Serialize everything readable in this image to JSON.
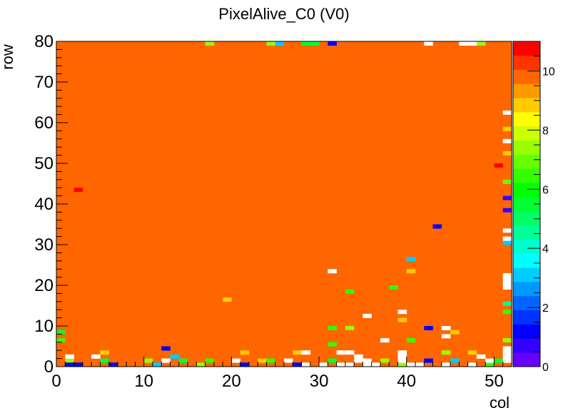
{
  "chart_data": {
    "type": "heatmap",
    "title": "PixelAlive_C0 (V0)",
    "xlabel": "col",
    "ylabel": "row",
    "x_range": [
      0,
      52
    ],
    "y_range": [
      0,
      80
    ],
    "n_cols": 52,
    "n_rows": 80,
    "z_range": [
      0,
      11
    ],
    "x_ticks": [
      0,
      10,
      20,
      30,
      40,
      50
    ],
    "y_ticks": [
      0,
      10,
      20,
      30,
      40,
      50,
      60,
      70,
      80
    ],
    "z_ticks": [
      0,
      2,
      4,
      6,
      8,
      10
    ],
    "dominant_value": 10,
    "palette": [
      "#6600ff",
      "#3300ff",
      "#0000ff",
      "#0033ff",
      "#0066ff",
      "#0099ff",
      "#00ccff",
      "#00ffff",
      "#00ffcc",
      "#00ff99",
      "#00ff66",
      "#00ff33",
      "#00ff00",
      "#33ff00",
      "#66ff00",
      "#99ff00",
      "#ccff00",
      "#ffff00",
      "#ffcc00",
      "#ff9900",
      "#ff6600",
      "#ff3300",
      "#ff0000"
    ],
    "cells": [
      {
        "col": 3,
        "row": 74,
        "v": 9.6
      },
      {
        "col": 7,
        "row": 73,
        "v": 9.6
      },
      {
        "col": 12,
        "row": 72,
        "v": 9.6
      },
      {
        "col": 15,
        "row": 75,
        "v": 9.6
      },
      {
        "col": 20,
        "row": 74,
        "v": 9.6
      },
      {
        "col": 22,
        "row": 70,
        "v": 9.6
      },
      {
        "col": 26,
        "row": 74,
        "v": 9.6
      },
      {
        "col": 30,
        "row": 72,
        "v": 9.6
      },
      {
        "col": 33,
        "row": 75,
        "v": 9.6
      },
      {
        "col": 37,
        "row": 71,
        "v": 9.6
      },
      {
        "col": 41,
        "row": 73,
        "v": 9.6
      },
      {
        "col": 45,
        "row": 76,
        "v": 9.6
      },
      {
        "col": 48,
        "row": 72,
        "v": 9.6
      },
      {
        "col": 50,
        "row": 75,
        "v": 9.6
      },
      {
        "col": 16,
        "row": 78,
        "v": 9.6
      },
      {
        "col": 4,
        "row": 78,
        "v": 9.6
      },
      {
        "col": 43,
        "row": 78,
        "v": 9.6
      },
      {
        "col": 9,
        "row": 66,
        "v": 9.6
      },
      {
        "col": 14,
        "row": 62,
        "v": 9.6
      },
      {
        "col": 19,
        "row": 65,
        "v": 9.6
      },
      {
        "col": 25,
        "row": 63,
        "v": 9.6
      },
      {
        "col": 28,
        "row": 66,
        "v": 9.6
      },
      {
        "col": 34,
        "row": 64,
        "v": 9.6
      },
      {
        "col": 38,
        "row": 62,
        "v": 9.6
      },
      {
        "col": 42,
        "row": 67,
        "v": 9.6
      },
      {
        "col": 46,
        "row": 64,
        "v": 9.6
      },
      {
        "col": 49,
        "row": 60,
        "v": 9.6
      },
      {
        "col": 5,
        "row": 61,
        "v": 9.6
      },
      {
        "col": 11,
        "row": 57,
        "v": 9.6
      },
      {
        "col": 17,
        "row": 55,
        "v": 9.6
      },
      {
        "col": 23,
        "row": 58,
        "v": 9.6
      },
      {
        "col": 29,
        "row": 54,
        "v": 9.6
      },
      {
        "col": 35,
        "row": 57,
        "v": 9.6
      },
      {
        "col": 40,
        "row": 55,
        "v": 9.6
      },
      {
        "col": 44,
        "row": 58,
        "v": 9.6
      },
      {
        "col": 2,
        "row": 53,
        "v": 9.6
      },
      {
        "col": 8,
        "row": 49,
        "v": 9.6
      },
      {
        "col": 13,
        "row": 47,
        "v": 9.6
      },
      {
        "col": 21,
        "row": 50,
        "v": 9.6
      },
      {
        "col": 27,
        "row": 46,
        "v": 9.6
      },
      {
        "col": 32,
        "row": 49,
        "v": 9.6
      },
      {
        "col": 39,
        "row": 47,
        "v": 9.6
      },
      {
        "col": 43,
        "row": 50,
        "v": 9.6
      },
      {
        "col": 47,
        "row": 48,
        "v": 9.6
      },
      {
        "col": 15,
        "row": 40,
        "v": 9.6
      },
      {
        "col": 15,
        "row": 41,
        "v": 9.6
      },
      {
        "col": 16,
        "row": 42,
        "v": 9.6
      },
      {
        "col": 15,
        "row": 43,
        "v": 9.6
      },
      {
        "col": 6,
        "row": 38,
        "v": 9.6
      },
      {
        "col": 10,
        "row": 36,
        "v": 9.6
      },
      {
        "col": 19,
        "row": 39,
        "v": 9.6
      },
      {
        "col": 24,
        "row": 37,
        "v": 9.6
      },
      {
        "col": 28,
        "row": 40,
        "v": 9.6
      },
      {
        "col": 33,
        "row": 36,
        "v": 9.6
      },
      {
        "col": 36,
        "row": 38,
        "v": 9.6
      },
      {
        "col": 41,
        "row": 41,
        "v": 9.6
      },
      {
        "col": 46,
        "row": 37,
        "v": 9.6
      },
      {
        "col": 50,
        "row": 39,
        "v": 9.6
      },
      {
        "col": 3,
        "row": 29,
        "v": 9.6
      },
      {
        "col": 9,
        "row": 27,
        "v": 9.6
      },
      {
        "col": 14,
        "row": 30,
        "v": 9.6
      },
      {
        "col": 20,
        "row": 28,
        "v": 9.6
      },
      {
        "col": 26,
        "row": 31,
        "v": 9.6
      },
      {
        "col": 30,
        "row": 29,
        "v": 9.6
      },
      {
        "col": 37,
        "row": 27,
        "v": 9.6
      },
      {
        "col": 42,
        "row": 30,
        "v": 9.6
      },
      {
        "col": 48,
        "row": 28,
        "v": 9.6
      },
      {
        "col": 5,
        "row": 19,
        "v": 9.6
      },
      {
        "col": 12,
        "row": 18,
        "v": 9.6
      },
      {
        "col": 18,
        "row": 21,
        "v": 9.6
      },
      {
        "col": 23,
        "row": 17,
        "v": 9.6
      },
      {
        "col": 31,
        "row": 20,
        "v": 9.6
      },
      {
        "col": 35,
        "row": 18,
        "v": 9.6
      },
      {
        "col": 44,
        "row": 21,
        "v": 9.6
      },
      {
        "col": 49,
        "row": 17,
        "v": 9.6
      },
      {
        "col": 2,
        "row": 10,
        "v": 9.6
      },
      {
        "col": 7,
        "row": 12,
        "v": 9.6
      },
      {
        "col": 16,
        "row": 9,
        "v": 9.6
      },
      {
        "col": 22,
        "row": 11,
        "v": 9.6
      },
      {
        "col": 29,
        "row": 13,
        "v": 9.6
      },
      {
        "col": 38,
        "row": 10,
        "v": 9.6
      },
      {
        "col": 45,
        "row": 12,
        "v": 9.6
      },
      {
        "col": 51,
        "row": 9,
        "v": 9.6
      },
      {
        "col": 50,
        "row": 49,
        "v": 11
      },
      {
        "col": 2,
        "row": 43,
        "v": 11
      },
      {
        "col": 17,
        "row": 79,
        "v": 7.5
      },
      {
        "col": 24,
        "row": 79,
        "v": 7.5
      },
      {
        "col": 28,
        "row": 79,
        "v": 5.3
      },
      {
        "col": 29,
        "row": 79,
        "v": 5.3
      },
      {
        "col": 25,
        "row": 79,
        "v": 3
      },
      {
        "col": 31,
        "row": 79,
        "v": 1.2
      },
      {
        "col": 48,
        "row": 79,
        "v": 7.5
      },
      {
        "col": 51,
        "row": 58,
        "v": 8.8
      },
      {
        "col": 51,
        "row": 52,
        "v": 8.8
      },
      {
        "col": 51,
        "row": 45,
        "v": 7
      },
      {
        "col": 51,
        "row": 41,
        "v": 0.5
      },
      {
        "col": 51,
        "row": 38,
        "v": 0.5
      },
      {
        "col": 43,
        "row": 34,
        "v": 1.2
      },
      {
        "col": 51,
        "row": 30,
        "v": 3
      },
      {
        "col": 40,
        "row": 26,
        "v": 3
      },
      {
        "col": 40,
        "row": 23,
        "v": 8.8
      },
      {
        "col": 33,
        "row": 18,
        "v": 6.3
      },
      {
        "col": 38,
        "row": 19,
        "v": 6.3
      },
      {
        "col": 19,
        "row": 16,
        "v": 8.8
      },
      {
        "col": 51,
        "row": 15,
        "v": 4.5
      },
      {
        "col": 51,
        "row": 13,
        "v": 6.3
      },
      {
        "col": 39,
        "row": 11,
        "v": 8.8
      },
      {
        "col": 42,
        "row": 9,
        "v": 1.2
      },
      {
        "col": 31,
        "row": 9,
        "v": 6.3
      },
      {
        "col": 33,
        "row": 9,
        "v": 7.5
      },
      {
        "col": 45,
        "row": 8,
        "v": 8.8
      },
      {
        "col": 51,
        "row": 6,
        "v": 7.5
      },
      {
        "col": 40,
        "row": 6,
        "v": 6.3
      },
      {
        "col": 12,
        "row": 4,
        "v": 1.2
      },
      {
        "col": 31,
        "row": 5,
        "v": 6.3
      },
      {
        "col": 44,
        "row": 3,
        "v": 7.5
      },
      {
        "col": 5,
        "row": 3,
        "v": 8.8
      },
      {
        "col": 21,
        "row": 3,
        "v": 8.8
      },
      {
        "col": 27,
        "row": 3,
        "v": 8.8
      },
      {
        "col": 47,
        "row": 3,
        "v": 8.8
      },
      {
        "col": 13,
        "row": 2,
        "v": 3
      },
      {
        "col": 1,
        "row": 1,
        "v": 7.5
      },
      {
        "col": 0,
        "row": 6,
        "v": 6.3
      },
      {
        "col": 0,
        "row": 8,
        "v": 5.3
      },
      {
        "col": 1,
        "row": 0,
        "v": 1.2
      },
      {
        "col": 2,
        "row": 0,
        "v": 1.2
      },
      {
        "col": 6,
        "row": 0,
        "v": 1.2
      },
      {
        "col": 5,
        "row": 1,
        "v": 5.3
      },
      {
        "col": 10,
        "row": 1,
        "v": 7.5
      },
      {
        "col": 11,
        "row": 0,
        "v": 3
      },
      {
        "col": 14,
        "row": 1,
        "v": 5.3
      },
      {
        "col": 16,
        "row": 0,
        "v": 7.5
      },
      {
        "col": 17,
        "row": 1,
        "v": 6.3
      },
      {
        "col": 21,
        "row": 0,
        "v": 1.2
      },
      {
        "col": 23,
        "row": 1,
        "v": 8.8
      },
      {
        "col": 24,
        "row": 1,
        "v": 6.3
      },
      {
        "col": 27,
        "row": 0,
        "v": 1.2
      },
      {
        "col": 31,
        "row": 1,
        "v": 5.3
      },
      {
        "col": 37,
        "row": 1,
        "v": 7.5
      },
      {
        "col": 39,
        "row": 0,
        "v": 7.5
      },
      {
        "col": 42,
        "row": 1,
        "v": 1.2
      },
      {
        "col": 45,
        "row": 1,
        "v": 3
      },
      {
        "col": 49,
        "row": 0,
        "v": 6.3
      },
      {
        "col": 50,
        "row": 1,
        "v": 5.3
      },
      {
        "col": 42,
        "row": 79,
        "v": null
      },
      {
        "col": 46,
        "row": 79,
        "v": null
      },
      {
        "col": 47,
        "row": 79,
        "v": null
      },
      {
        "col": 51,
        "row": 62,
        "v": null
      },
      {
        "col": 51,
        "row": 55,
        "v": null
      },
      {
        "col": 51,
        "row": 33,
        "v": null
      },
      {
        "col": 51,
        "row": 31,
        "v": null
      },
      {
        "col": 31,
        "row": 23,
        "v": null
      },
      {
        "col": 51,
        "row": 22,
        "v": null
      },
      {
        "col": 51,
        "row": 21,
        "v": null
      },
      {
        "col": 51,
        "row": 20,
        "v": null
      },
      {
        "col": 51,
        "row": 19,
        "v": null
      },
      {
        "col": 39,
        "row": 13,
        "v": null
      },
      {
        "col": 35,
        "row": 12,
        "v": null
      },
      {
        "col": 44,
        "row": 9,
        "v": null
      },
      {
        "col": 44,
        "row": 7,
        "v": null
      },
      {
        "col": 37,
        "row": 6,
        "v": null
      },
      {
        "col": 51,
        "row": 4,
        "v": null
      },
      {
        "col": 51,
        "row": 3,
        "v": null
      },
      {
        "col": 51,
        "row": 2,
        "v": null
      },
      {
        "col": 51,
        "row": 1,
        "v": null
      },
      {
        "col": 1,
        "row": 2,
        "v": null
      },
      {
        "col": 28,
        "row": 3,
        "v": null
      },
      {
        "col": 32,
        "row": 3,
        "v": null
      },
      {
        "col": 33,
        "row": 3,
        "v": null
      },
      {
        "col": 34,
        "row": 2,
        "v": null
      },
      {
        "col": 34,
        "row": 1,
        "v": null
      },
      {
        "col": 35,
        "row": 1,
        "v": null
      },
      {
        "col": 35,
        "row": 0,
        "v": null
      },
      {
        "col": 33,
        "row": 0,
        "v": null
      },
      {
        "col": 32,
        "row": 0,
        "v": null
      },
      {
        "col": 36,
        "row": 0,
        "v": null
      },
      {
        "col": 39,
        "row": 2,
        "v": null
      },
      {
        "col": 39,
        "row": 3,
        "v": null
      },
      {
        "col": 39,
        "row": 1,
        "v": null
      },
      {
        "col": 40,
        "row": 0,
        "v": null
      },
      {
        "col": 41,
        "row": 0,
        "v": null
      },
      {
        "col": 48,
        "row": 2,
        "v": null
      },
      {
        "col": 49,
        "row": 1,
        "v": null
      },
      {
        "col": 4,
        "row": 2,
        "v": null
      },
      {
        "col": 12,
        "row": 1,
        "v": null
      },
      {
        "col": 20,
        "row": 1,
        "v": null
      },
      {
        "col": 26,
        "row": 1,
        "v": null
      },
      {
        "col": 30,
        "row": 0,
        "v": null
      },
      {
        "col": 44,
        "row": 0,
        "v": null
      },
      {
        "col": 47,
        "row": 0,
        "v": null
      },
      {
        "col": 28,
        "row": 0,
        "v": null
      }
    ]
  }
}
